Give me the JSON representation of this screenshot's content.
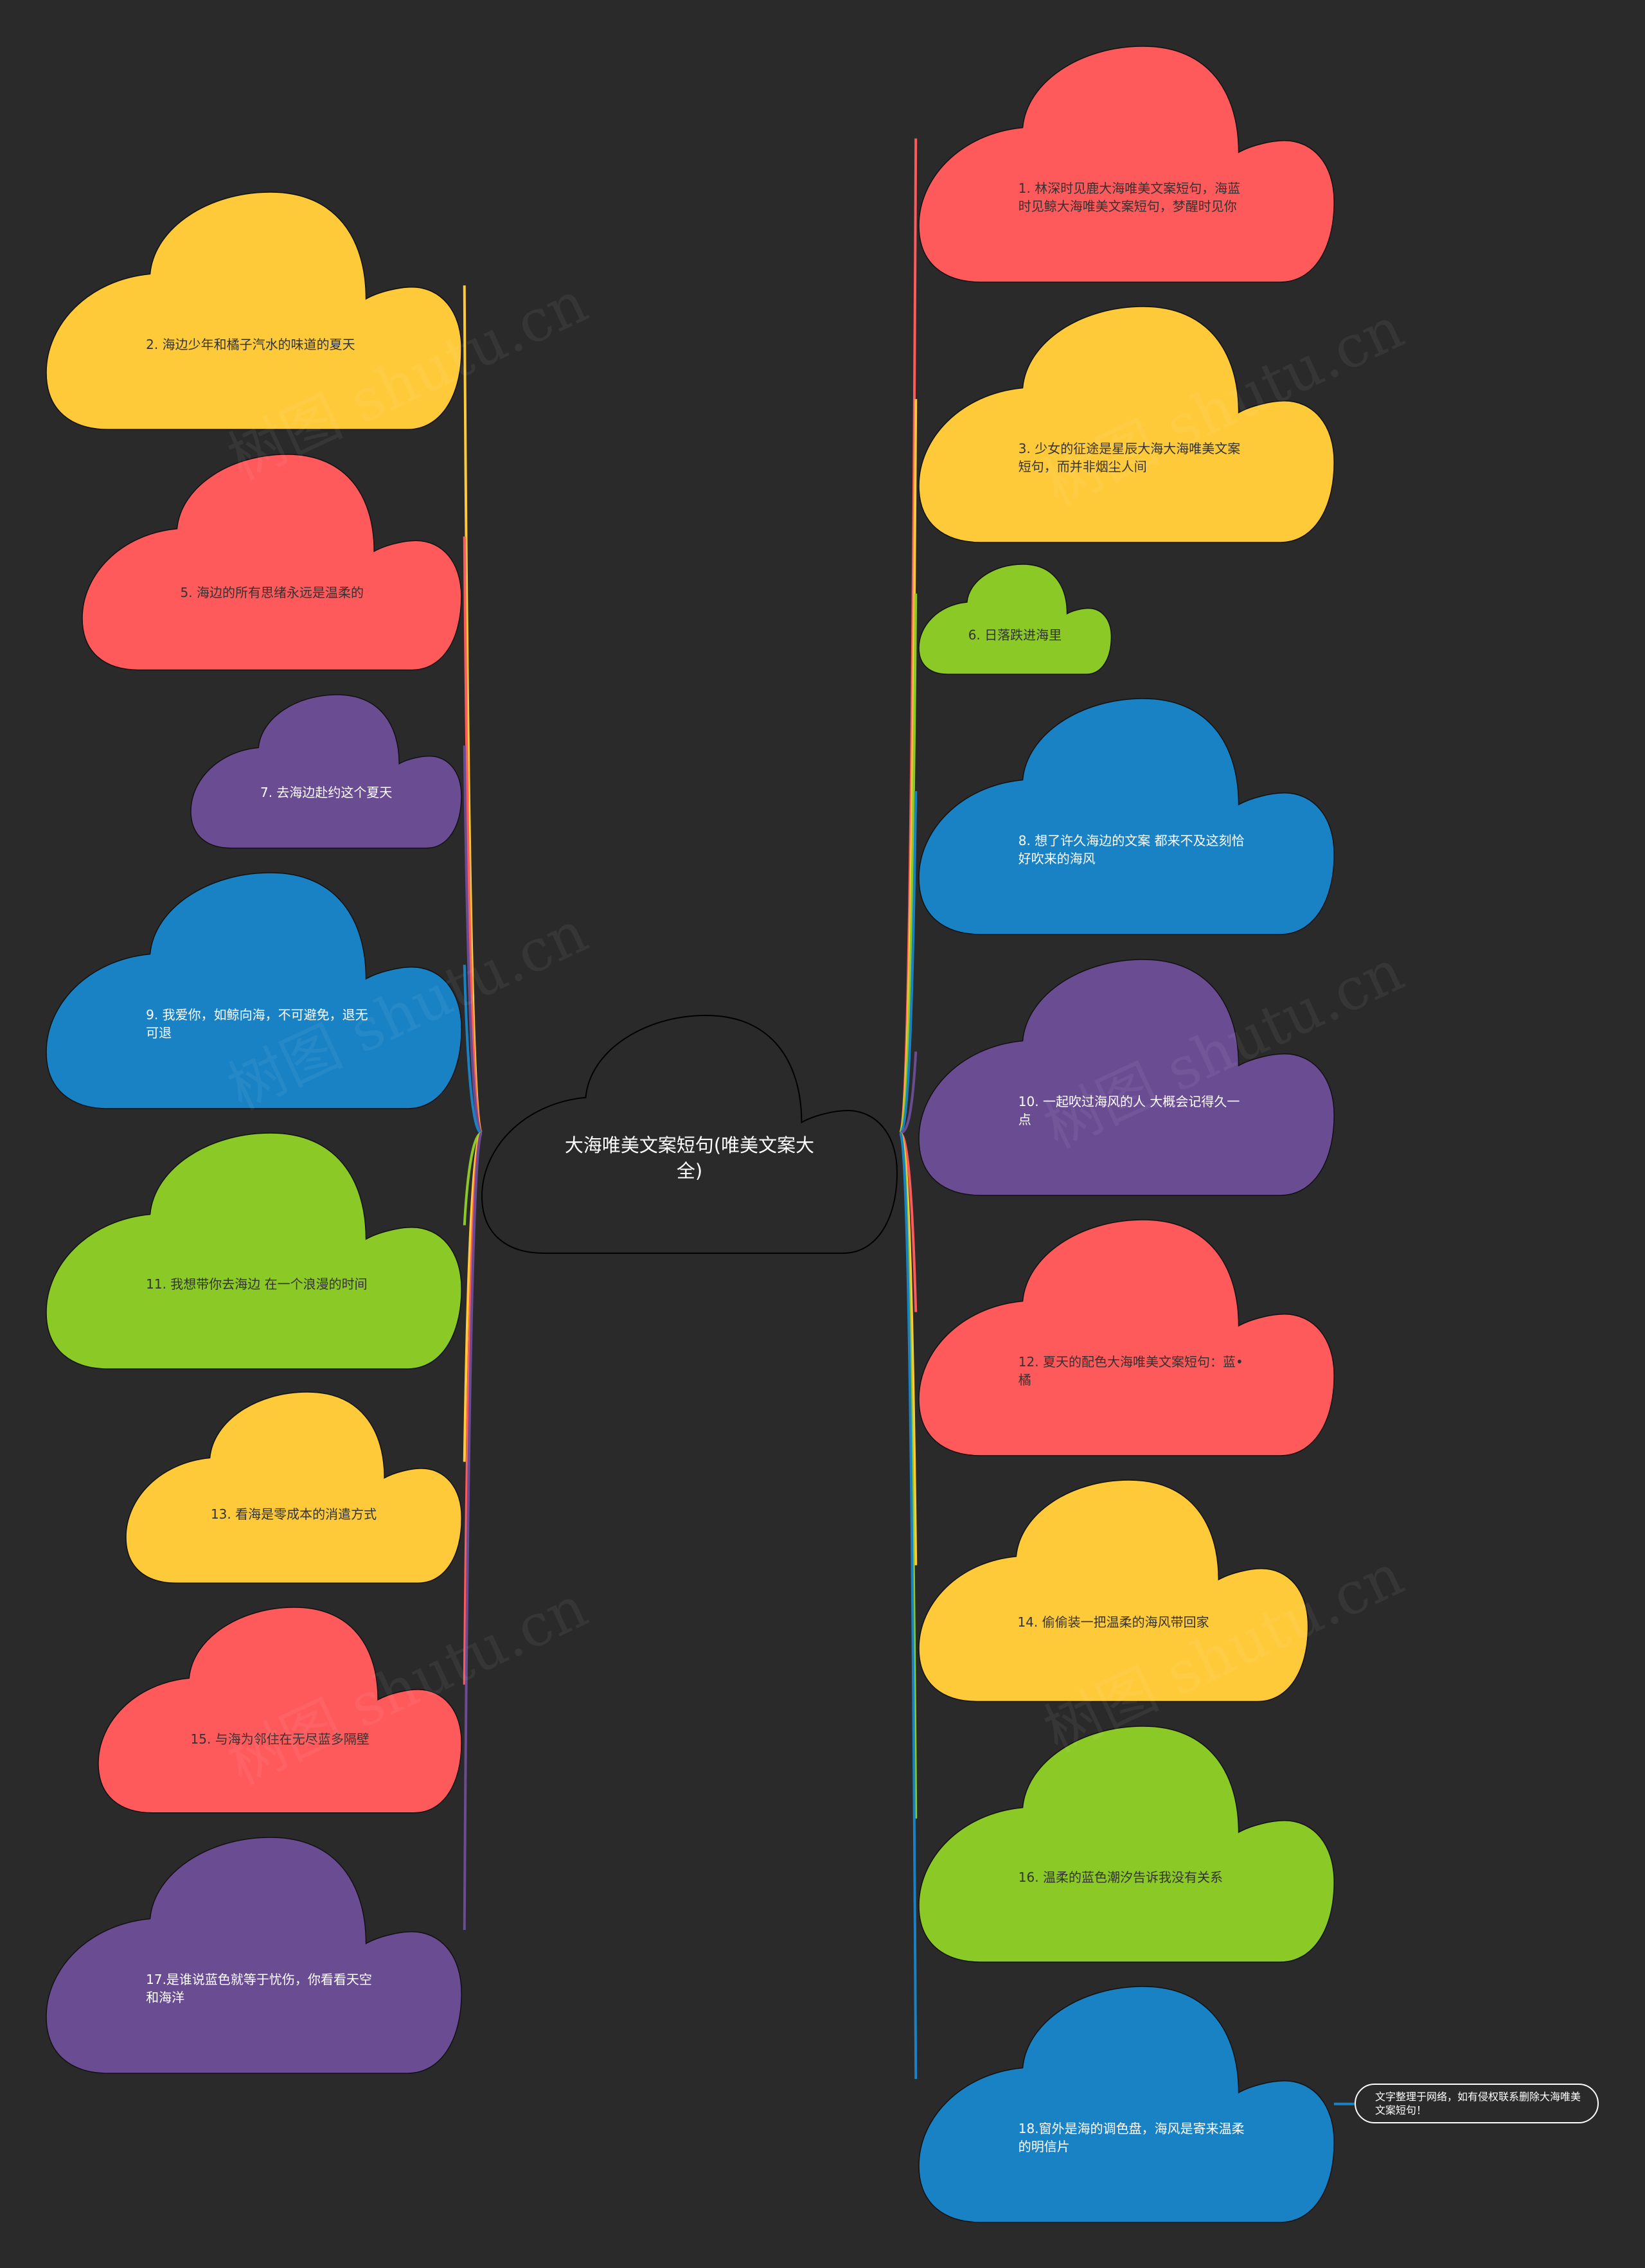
{
  "root": {
    "text": "大海唯美文案短句(唯美文案大全)"
  },
  "colors": {
    "background": "#2a2a2a",
    "red": "#fe595b",
    "yellow": "#ffca3a",
    "green": "#8ac926",
    "blue": "#1982c4",
    "purple": "#6a4c93"
  },
  "nodes": [
    {
      "text": "1. 林深时见鹿大海唯美文案短句，海蓝时见鲸大海唯美文案短句，梦醒时见你",
      "color": "red"
    },
    {
      "text": "2. 海边少年和橘子汽水的味道的夏天",
      "color": "yellow"
    },
    {
      "text": "3. 少女的征途是星辰大海大海唯美文案短句，而并非烟尘人间",
      "color": "yellow"
    },
    {
      "text": "5. 海边的所有思绪永远是温柔的",
      "color": "red"
    },
    {
      "text": "6. 日落跌进海里",
      "color": "green"
    },
    {
      "text": "7. 去海边赴约这个夏天",
      "color": "purple"
    },
    {
      "text": "8. 想了许久海边的文案 都来不及这刻恰好吹来的海风",
      "color": "blue"
    },
    {
      "text": "9. 我爱你，如鲸向海，不可避免，退无可退",
      "color": "blue"
    },
    {
      "text": "10. 一起吹过海风的人 大概会记得久一点",
      "color": "purple"
    },
    {
      "text": "11. 我想带你去海边 在一个浪漫的时间",
      "color": "green"
    },
    {
      "text": "12. 夏天的配色大海唯美文案短句：蓝•橘",
      "color": "red"
    },
    {
      "text": "13. 看海是零成本的消遣方式",
      "color": "yellow"
    },
    {
      "text": "14. 偷偷装一把温柔的海风带回家",
      "color": "yellow"
    },
    {
      "text": "15. 与海为邻住在无尽蓝多隔壁",
      "color": "red"
    },
    {
      "text": "16. 温柔的蓝色潮汐告诉我没有关系",
      "color": "green"
    },
    {
      "text": "17.是谁说蓝色就等于忧伤，你看看天空和海洋",
      "color": "purple"
    },
    {
      "text": "18.窗外是海的调色盘，海风是寄来温柔的明信片",
      "color": "blue"
    }
  ],
  "note": {
    "text": "文字整理于网络，如有侵权联系删除大海唯美文案短句！"
  },
  "watermark": "树图 shutu.cn"
}
